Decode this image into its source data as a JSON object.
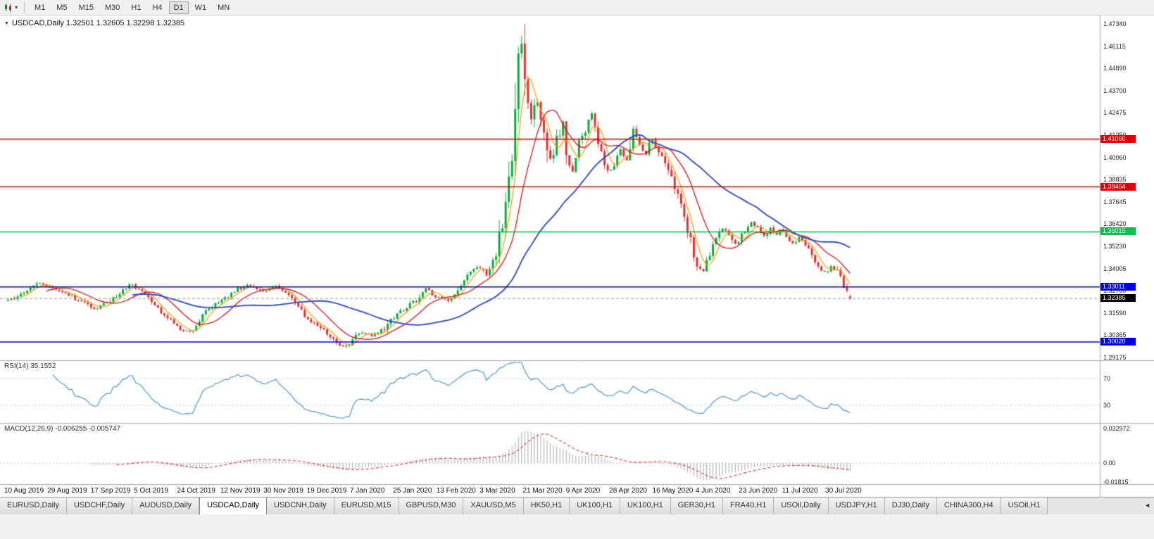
{
  "colors": {
    "up": "#0caa3c",
    "down": "#e03232",
    "ma_fast": "#ff9a00",
    "ma_mid": "#e00000",
    "ma_slow": "#2a46c8",
    "level_red": "#e00000",
    "level_green": "#00c050",
    "level_blue": "#0000dd",
    "current": "#000000",
    "rsi_line": "#3d8fd1",
    "macd_hist": "#a8a8a8",
    "macd_signal": "#e03232",
    "grid": "#c8c8c8",
    "separator": "#a8a8a8"
  },
  "toolbar": {
    "chart_icon": "candlestick-chart",
    "dropdown": "▾",
    "timeframes": [
      {
        "label": "M1",
        "active": false
      },
      {
        "label": "M5",
        "active": false
      },
      {
        "label": "M15",
        "active": false
      },
      {
        "label": "M30",
        "active": false
      },
      {
        "label": "H1",
        "active": false
      },
      {
        "label": "H4",
        "active": false
      },
      {
        "label": "D1",
        "active": true
      },
      {
        "label": "W1",
        "active": false
      },
      {
        "label": "MN",
        "active": false
      }
    ]
  },
  "chart_header": {
    "collapse_glyph": "▼",
    "title": "USDCAD,Daily 1.32501 1.32605 1.32298 1.32385"
  },
  "price_axis": [
    "1.47340",
    "1.46115",
    "1.44890",
    "1.43700",
    "1.42475",
    "1.41250",
    "1.40060",
    "1.38835",
    "1.37645",
    "1.36420",
    "1.35230",
    "1.34005",
    "1.32780",
    "1.31590",
    "1.30365",
    "1.29175"
  ],
  "levels": [
    {
      "label": "1.41060",
      "price": 1.4106,
      "color_key": "level_red"
    },
    {
      "label": "1.38464",
      "price": 1.38464,
      "color_key": "level_red"
    },
    {
      "label": "1.36015",
      "price": 1.36015,
      "color_key": "level_green"
    },
    {
      "label": "1.33011",
      "price": 1.33011,
      "color_key": "level_blue"
    },
    {
      "label": "1.30020",
      "price": 1.3002,
      "color_key": "level_blue"
    }
  ],
  "current_price": {
    "label": "1.32385",
    "price": 1.32385
  },
  "rsi_panel": {
    "title": "RSI(14) 35.1552",
    "levels": [
      {
        "label": "70",
        "value": 70
      },
      {
        "label": "30",
        "value": 30
      }
    ]
  },
  "macd_panel": {
    "title": "MACD(12,26,9) -0.006255 -0.005747",
    "axis": [
      {
        "label": "0.032972",
        "value": 0.032972
      },
      {
        "label": "0.00",
        "value": 0
      },
      {
        "label": "-0.01815",
        "value": -0.01815
      }
    ]
  },
  "time_axis": [
    "10 Aug 2019",
    "29 Aug 2019",
    "17 Sep 2019",
    "5 Oct 2019",
    "24 Oct 2019",
    "12 Nov 2019",
    "30 Nov 2019",
    "19 Dec 2019",
    "7 Jan 2020",
    "25 Jan 2020",
    "13 Feb 2020",
    "3 Mar 2020",
    "21 Mar 2020",
    "9 Apr 2020",
    "28 Apr 2020",
    "16 May 2020",
    "4 Jun 2020",
    "23 Jun 2020",
    "11 Jul 2020",
    "30 Jul 2020"
  ],
  "tabs": [
    {
      "label": "EURUSD,Daily",
      "active": false
    },
    {
      "label": "USDCHF,Daily",
      "active": false
    },
    {
      "label": "AUDUSD,Daily",
      "active": false
    },
    {
      "label": "USDCAD,Daily",
      "active": true
    },
    {
      "label": "USDCNH,Daily",
      "active": false
    },
    {
      "label": "EURUSD,M15",
      "active": false
    },
    {
      "label": "GBPUSD,M30",
      "active": false
    },
    {
      "label": "XAUUSD,M5",
      "active": false
    },
    {
      "label": "HK50,H1",
      "active": false
    },
    {
      "label": "UK100,H1",
      "active": false
    },
    {
      "label": "UK100,H1",
      "active": false
    },
    {
      "label": "GER30,H1",
      "active": false
    },
    {
      "label": "FRA40,H1",
      "active": false
    },
    {
      "label": "USOil,Daily",
      "active": false
    },
    {
      "label": "USDJPY,H1",
      "active": false
    },
    {
      "label": "DJ30,Daily",
      "active": false
    },
    {
      "label": "CHINA300,H4",
      "active": false
    },
    {
      "label": "USOil,H1",
      "active": false
    }
  ],
  "tab_nav": {
    "scroll_left_glyph": "◄"
  },
  "chart_data": {
    "type": "candlestick",
    "symbol": "USDCAD",
    "timeframe": "Daily",
    "open": 1.32501,
    "high": 1.32605,
    "low": 1.32298,
    "close": 1.32385,
    "bars": 265,
    "price_top": 1.478,
    "price_bottom": 1.2902,
    "peak_bar": {
      "index": 161,
      "high": 1.467
    },
    "close_anchors": [
      [
        0,
        1.3225
      ],
      [
        5,
        1.327
      ],
      [
        10,
        1.332
      ],
      [
        16,
        1.328
      ],
      [
        22,
        1.323
      ],
      [
        27,
        1.318
      ],
      [
        32,
        1.322
      ],
      [
        38,
        1.332
      ],
      [
        44,
        1.325
      ],
      [
        50,
        1.313
      ],
      [
        54,
        1.307
      ],
      [
        58,
        1.306
      ],
      [
        62,
        1.317
      ],
      [
        67,
        1.323
      ],
      [
        72,
        1.329
      ],
      [
        76,
        1.331
      ],
      [
        80,
        1.328
      ],
      [
        84,
        1.33
      ],
      [
        88,
        1.325
      ],
      [
        92,
        1.317
      ],
      [
        94,
        1.313
      ],
      [
        98,
        1.308
      ],
      [
        102,
        1.301
      ],
      [
        105,
        1.298
      ],
      [
        107,
        1.299
      ],
      [
        110,
        1.305
      ],
      [
        114,
        1.304
      ],
      [
        118,
        1.307
      ],
      [
        121,
        1.314
      ],
      [
        125,
        1.319
      ],
      [
        128,
        1.323
      ],
      [
        131,
        1.329
      ],
      [
        134,
        1.325
      ],
      [
        138,
        1.323
      ],
      [
        141,
        1.329
      ],
      [
        144,
        1.338
      ],
      [
        148,
        1.341
      ],
      [
        150,
        1.336
      ],
      [
        152,
        1.343
      ],
      [
        154,
        1.356
      ],
      [
        156,
        1.373
      ],
      [
        158,
        1.398
      ],
      [
        159,
        1.422
      ],
      [
        160,
        1.451
      ],
      [
        161,
        1.464
      ],
      [
        162,
        1.448
      ],
      [
        163,
        1.426
      ],
      [
        164,
        1.419
      ],
      [
        165,
        1.428
      ],
      [
        166,
        1.433
      ],
      [
        167,
        1.424
      ],
      [
        168,
        1.415
      ],
      [
        169,
        1.406
      ],
      [
        170,
        1.399
      ],
      [
        172,
        1.409
      ],
      [
        174,
        1.418
      ],
      [
        175,
        1.402
      ],
      [
        177,
        1.395
      ],
      [
        179,
        1.408
      ],
      [
        181,
        1.416
      ],
      [
        183,
        1.425
      ],
      [
        185,
        1.409
      ],
      [
        187,
        1.398
      ],
      [
        188,
        1.394
      ],
      [
        190,
        1.395
      ],
      [
        192,
        1.406
      ],
      [
        194,
        1.398
      ],
      [
        196,
        1.416
      ],
      [
        198,
        1.408
      ],
      [
        200,
        1.403
      ],
      [
        202,
        1.411
      ],
      [
        204,
        1.405
      ],
      [
        206,
        1.398
      ],
      [
        208,
        1.389
      ],
      [
        210,
        1.379
      ],
      [
        212,
        1.368
      ],
      [
        214,
        1.356
      ],
      [
        215,
        1.348
      ],
      [
        216,
        1.342
      ],
      [
        218,
        1.339
      ],
      [
        220,
        1.347
      ],
      [
        222,
        1.356
      ],
      [
        224,
        1.362
      ],
      [
        226,
        1.358
      ],
      [
        228,
        1.353
      ],
      [
        229,
        1.356
      ],
      [
        231,
        1.361
      ],
      [
        233,
        1.365
      ],
      [
        235,
        1.362
      ],
      [
        237,
        1.358
      ],
      [
        239,
        1.362
      ],
      [
        241,
        1.359
      ],
      [
        242,
        1.361
      ],
      [
        244,
        1.358
      ],
      [
        246,
        1.354
      ],
      [
        248,
        1.357
      ],
      [
        250,
        1.352
      ],
      [
        252,
        1.348
      ],
      [
        254,
        1.342
      ],
      [
        256,
        1.338
      ],
      [
        258,
        1.341
      ],
      [
        260,
        1.339
      ],
      [
        262,
        1.331
      ],
      [
        264,
        1.32385
      ]
    ],
    "moving_averages": [
      {
        "name": "fast",
        "period": 5,
        "color_key": "ma_fast"
      },
      {
        "name": "medium",
        "period": 13,
        "color_key": "ma_mid"
      },
      {
        "name": "slow",
        "period": 40,
        "color_key": "ma_slow"
      }
    ],
    "rsi_period": 14,
    "macd_params": [
      12,
      26,
      9
    ],
    "rsi_last": 35.1552,
    "macd_last": -0.006255,
    "macd_signal_last": -0.005747
  }
}
